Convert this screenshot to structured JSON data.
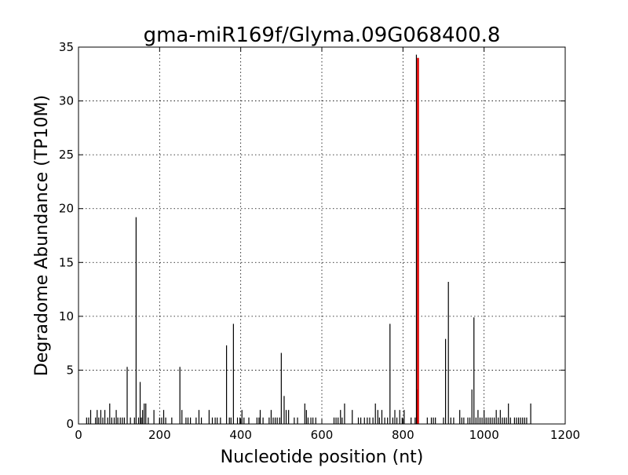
{
  "chart_data": {
    "type": "bar",
    "title": "gma-miR169f/Glyma.09G068400.8",
    "xlabel": "Nucleotide position (nt)",
    "ylabel": "Degradome Abundance (TP10M)",
    "xlim": [
      0,
      1200
    ],
    "ylim": [
      0,
      35
    ],
    "x_ticks": [
      0,
      200,
      400,
      600,
      800,
      1000,
      1200
    ],
    "y_ticks": [
      0,
      5,
      10,
      15,
      20,
      25,
      30,
      35
    ],
    "grid": true,
    "colors": {
      "series": "#000000",
      "highlight": "#e00000"
    },
    "series": [
      {
        "x": [
          20,
          25,
          30,
          42,
          46,
          50,
          55,
          60,
          65,
          72,
          77,
          82,
          88,
          93,
          97,
          103,
          108,
          113,
          120,
          128,
          138,
          142,
          148,
          152,
          155,
          158,
          162,
          166,
          172,
          186,
          200,
          205,
          210,
          215,
          230,
          250,
          255,
          265,
          270,
          276,
          290,
          297,
          303,
          322,
          330,
          337,
          342,
          350,
          365,
          372,
          376,
          382,
          392,
          398,
          403,
          408,
          420,
          440,
          445,
          448,
          455,
          470,
          475,
          480,
          485,
          490,
          496,
          500,
          507,
          512,
          518,
          532,
          540,
          558,
          562,
          566,
          573,
          578,
          585,
          630,
          635,
          640,
          646,
          650,
          656,
          675,
          690,
          696,
          705,
          712,
          718,
          726,
          732,
          738,
          742,
          748,
          755,
          762,
          768,
          775,
          780,
          785,
          792,
          798,
          803,
          820,
          830,
          835,
          860,
          870,
          875,
          880,
          900,
          905,
          912,
          918,
          925,
          940,
          945,
          950,
          960,
          965,
          970,
          975,
          980,
          985,
          990,
          995,
          1000,
          1005,
          1010,
          1015,
          1020,
          1025,
          1030,
          1035,
          1040,
          1045,
          1050,
          1055,
          1060,
          1065,
          1075,
          1080,
          1085,
          1090,
          1095,
          1100,
          1105,
          1115
        ],
        "values": [
          0.6,
          0.6,
          1.3,
          0.6,
          1.3,
          0.6,
          1.3,
          0.6,
          1.3,
          0.6,
          1.9,
          0.6,
          0.6,
          1.3,
          0.6,
          0.6,
          0.6,
          0.6,
          5.3,
          0.6,
          0.6,
          19.2,
          0.6,
          3.9,
          0.6,
          1.3,
          1.9,
          1.9,
          0.6,
          1.3,
          0.6,
          0.6,
          1.3,
          0.6,
          0.6,
          5.3,
          1.3,
          0.6,
          0.6,
          0.6,
          0.6,
          1.3,
          0.6,
          1.3,
          0.6,
          0.6,
          0.6,
          0.6,
          7.3,
          0.6,
          0.6,
          9.3,
          0.6,
          0.6,
          1.3,
          0.6,
          0.6,
          0.6,
          0.6,
          1.3,
          0.6,
          0.6,
          1.3,
          0.6,
          0.6,
          0.6,
          0.6,
          6.6,
          2.6,
          1.3,
          1.3,
          0.6,
          0.6,
          1.9,
          1.3,
          0.6,
          0.6,
          0.6,
          0.6,
          0.6,
          0.6,
          0.6,
          1.3,
          0.6,
          1.9,
          1.3,
          0.6,
          0.6,
          0.6,
          0.6,
          0.6,
          0.6,
          1.9,
          1.3,
          0.6,
          1.3,
          0.6,
          0.6,
          9.3,
          0.6,
          1.3,
          0.6,
          1.3,
          0.6,
          1.3,
          0.6,
          0.6,
          3.2,
          0.6,
          0.6,
          0.6,
          0.6,
          0.6,
          7.9,
          13.2,
          0.6,
          0.6,
          1.3,
          0.6,
          0.6,
          0.6,
          0.6,
          3.2,
          9.9,
          0.6,
          1.3,
          0.6,
          0.6,
          1.3,
          0.6,
          0.6,
          0.6,
          0.6,
          0.6,
          1.3,
          0.6,
          1.3,
          0.6,
          0.6,
          0.6,
          1.9,
          0.6,
          0.6,
          0.6,
          0.6,
          0.6,
          0.6,
          0.6,
          0.6,
          1.9
        ]
      }
    ],
    "highlight": {
      "x": 837,
      "value": 34.0,
      "marker_value": 34.3
    }
  }
}
